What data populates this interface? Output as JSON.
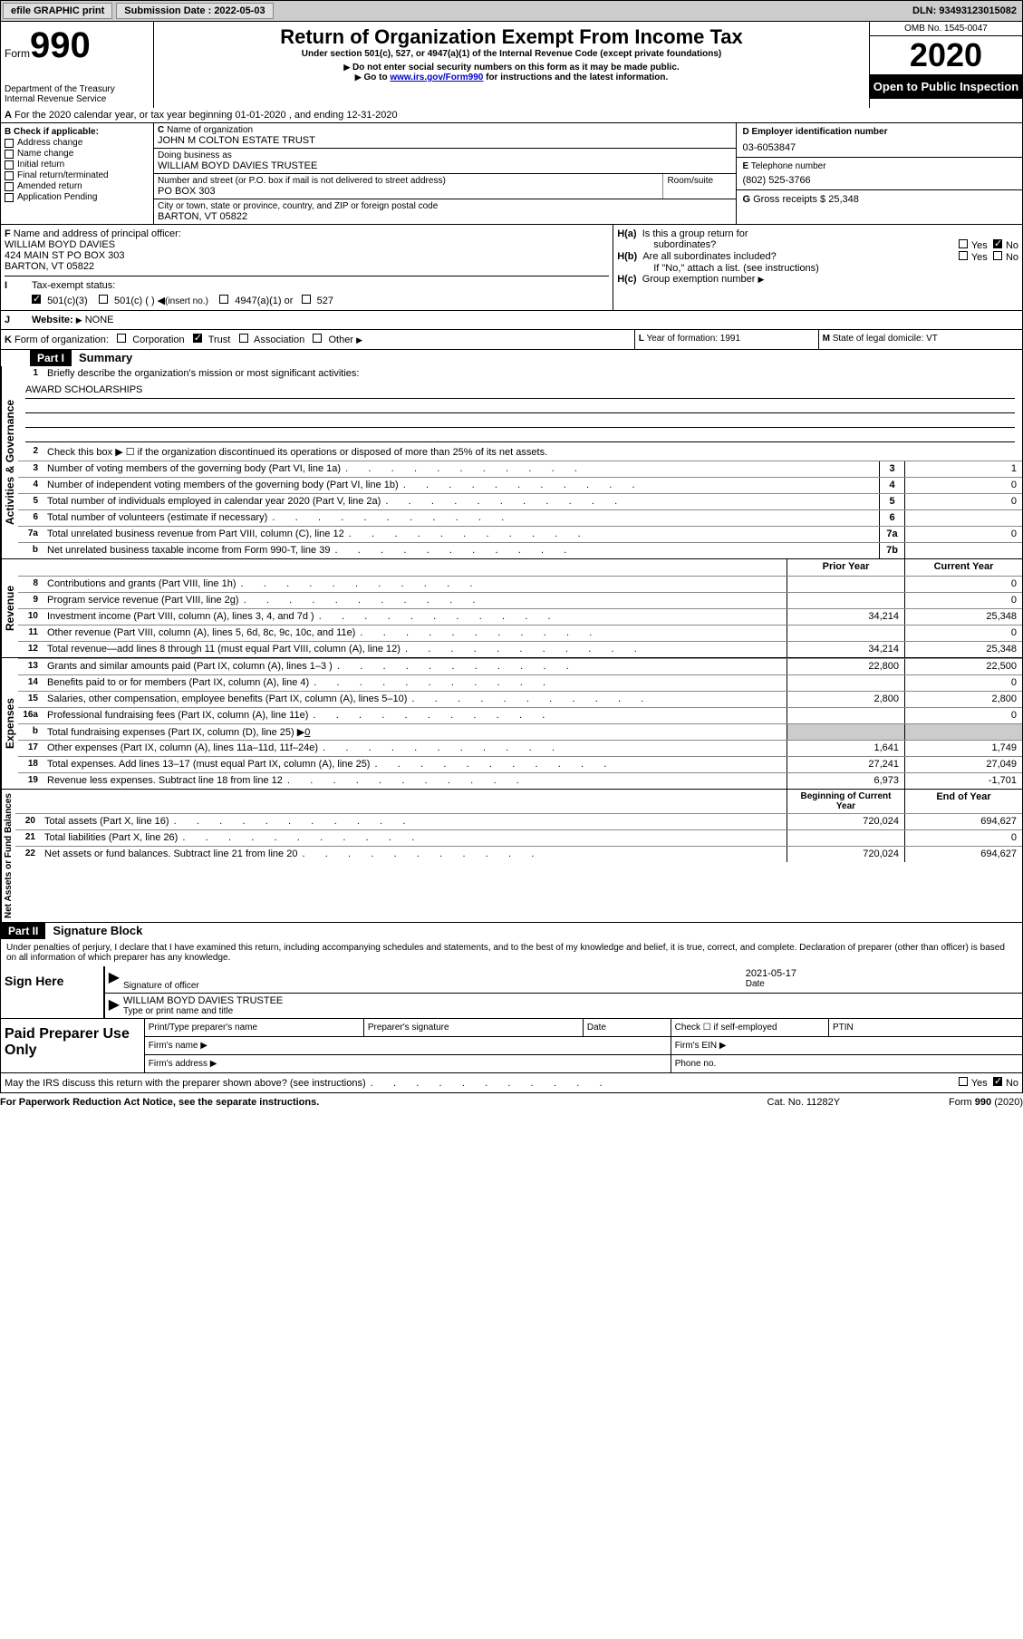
{
  "topbar": {
    "efile_label": "efile GRAPHIC print",
    "submission_label": "Submission Date : 2022-05-03",
    "dln_label": "DLN: 93493123015082"
  },
  "header": {
    "form_prefix": "Form",
    "form_number": "990",
    "title": "Return of Organization Exempt From Income Tax",
    "subtitle": "Under section 501(c), 527, or 4947(a)(1) of the Internal Revenue Code (except private foundations)",
    "note1": "Do not enter social security numbers on this form as it may be made public.",
    "note2_prefix": "Go to ",
    "note2_link": "www.irs.gov/Form990",
    "note2_suffix": " for instructions and the latest information.",
    "dept1": "Department of the Treasury",
    "dept2": "Internal Revenue Service",
    "omb": "OMB No. 1545-0047",
    "year": "2020",
    "inspect": "Open to Public Inspection"
  },
  "sectionA": {
    "line": "For the 2020 calendar year, or tax year beginning 01-01-2020    , and ending 12-31-2020",
    "prefix": "A"
  },
  "sectionB": {
    "label": "Check if applicable:",
    "prefix": "B",
    "items": [
      "Address change",
      "Name change",
      "Initial return",
      "Final return/terminated",
      "Amended return",
      "Application Pending"
    ]
  },
  "sectionC": {
    "name_label": "Name of organization",
    "prefix": "C",
    "name": "JOHN M COLTON ESTATE TRUST",
    "dba_label": "Doing business as",
    "dba": "WILLIAM BOYD DAVIES TRUSTEE",
    "street_label": "Number and street (or P.O. box if mail is not delivered to street address)",
    "street": "PO BOX 303",
    "room_label": "Room/suite",
    "city_label": "City or town, state or province, country, and ZIP or foreign postal code",
    "city": "BARTON, VT  05822"
  },
  "sectionD": {
    "label": "Employer identification number",
    "prefix": "D",
    "value": "03-6053847"
  },
  "sectionE": {
    "label": "Telephone number",
    "prefix": "E",
    "value": "(802) 525-3766"
  },
  "sectionG": {
    "label": "Gross receipts $ 25,348",
    "prefix": "G"
  },
  "sectionF": {
    "label": "Name and address of principal officer:",
    "prefix": "F",
    "name": "WILLIAM BOYD DAVIES",
    "addr1": "424 MAIN ST PO BOX 303",
    "addr2": "BARTON, VT  05822"
  },
  "sectionH": {
    "ha_label": "Is this a group return for",
    "ha_label2": "subordinates?",
    "ha_prefix": "H(a)",
    "hb_label": "Are all subordinates included?",
    "hb_prefix": "H(b)",
    "hb_note": "If \"No,\" attach a list. (see instructions)",
    "hc_label": "Group exemption number",
    "hc_prefix": "H(c)",
    "yes": "Yes",
    "no": "No"
  },
  "sectionI": {
    "label": "Tax-exempt status:",
    "prefix": "I",
    "opt1": "501(c)(3)",
    "opt2": "501(c) (   )",
    "opt2_note": "(insert no.)",
    "opt3": "4947(a)(1) or",
    "opt4": "527"
  },
  "sectionJ": {
    "label": "Website:",
    "prefix": "J",
    "value": "NONE"
  },
  "sectionK": {
    "label": "Form of organization:",
    "prefix": "K",
    "opts": [
      "Corporation",
      "Trust",
      "Association",
      "Other"
    ]
  },
  "sectionL": {
    "label": "Year of formation: 1991",
    "prefix": "L"
  },
  "sectionM": {
    "label": "State of legal domicile: VT",
    "prefix": "M"
  },
  "part1": {
    "label": "Part I",
    "title": "Summary",
    "vert1": "Activities & Governance",
    "vert2": "Revenue",
    "vert3": "Expenses",
    "vert4": "Net Assets or Fund Balances",
    "line1_label": "Briefly describe the organization's mission or most significant activities:",
    "line1_value": "AWARD SCHOLARSHIPS",
    "line2": "Check this box ▶ ☐  if the organization discontinued its operations or disposed of more than 25% of its net assets.",
    "lines_ag": [
      {
        "n": "3",
        "d": "Number of voting members of the governing body (Part VI, line 1a)",
        "box": "3",
        "v": "1"
      },
      {
        "n": "4",
        "d": "Number of independent voting members of the governing body (Part VI, line 1b)",
        "box": "4",
        "v": "0"
      },
      {
        "n": "5",
        "d": "Total number of individuals employed in calendar year 2020 (Part V, line 2a)",
        "box": "5",
        "v": "0"
      },
      {
        "n": "6",
        "d": "Total number of volunteers (estimate if necessary)",
        "box": "6",
        "v": ""
      },
      {
        "n": "7a",
        "d": "Total unrelated business revenue from Part VIII, column (C), line 12",
        "box": "7a",
        "v": "0"
      },
      {
        "n": "b",
        "d": "Net unrelated business taxable income from Form 990-T, line 39",
        "box": "7b",
        "v": ""
      }
    ],
    "hdr_prior": "Prior Year",
    "hdr_current": "Current Year",
    "lines_rev": [
      {
        "n": "8",
        "d": "Contributions and grants (Part VIII, line 1h)",
        "p": "",
        "c": "0"
      },
      {
        "n": "9",
        "d": "Program service revenue (Part VIII, line 2g)",
        "p": "",
        "c": "0"
      },
      {
        "n": "10",
        "d": "Investment income (Part VIII, column (A), lines 3, 4, and 7d )",
        "p": "34,214",
        "c": "25,348"
      },
      {
        "n": "11",
        "d": "Other revenue (Part VIII, column (A), lines 5, 6d, 8c, 9c, 10c, and 11e)",
        "p": "",
        "c": "0"
      },
      {
        "n": "12",
        "d": "Total revenue—add lines 8 through 11 (must equal Part VIII, column (A), line 12)",
        "p": "34,214",
        "c": "25,348"
      }
    ],
    "lines_exp": [
      {
        "n": "13",
        "d": "Grants and similar amounts paid (Part IX, column (A), lines 1–3 )",
        "p": "22,800",
        "c": "22,500"
      },
      {
        "n": "14",
        "d": "Benefits paid to or for members (Part IX, column (A), line 4)",
        "p": "",
        "c": "0"
      },
      {
        "n": "15",
        "d": "Salaries, other compensation, employee benefits (Part IX, column (A), lines 5–10)",
        "p": "2,800",
        "c": "2,800"
      },
      {
        "n": "16a",
        "d": "Professional fundraising fees (Part IX, column (A), line 11e)",
        "p": "",
        "c": "0"
      }
    ],
    "line16b": "Total fundraising expenses (Part IX, column (D), line 25) ▶",
    "line16b_val": "0",
    "lines_exp2": [
      {
        "n": "17",
        "d": "Other expenses (Part IX, column (A), lines 11a–11d, 11f–24e)",
        "p": "1,641",
        "c": "1,749"
      },
      {
        "n": "18",
        "d": "Total expenses. Add lines 13–17 (must equal Part IX, column (A), line 25)",
        "p": "27,241",
        "c": "27,049"
      },
      {
        "n": "19",
        "d": "Revenue less expenses. Subtract line 18 from line 12",
        "p": "6,973",
        "c": "-1,701"
      }
    ],
    "hdr_begin": "Beginning of Current Year",
    "hdr_end": "End of Year",
    "lines_net": [
      {
        "n": "20",
        "d": "Total assets (Part X, line 16)",
        "p": "720,024",
        "c": "694,627"
      },
      {
        "n": "21",
        "d": "Total liabilities (Part X, line 26)",
        "p": "",
        "c": "0"
      },
      {
        "n": "22",
        "d": "Net assets or fund balances. Subtract line 21 from line 20",
        "p": "720,024",
        "c": "694,627"
      }
    ]
  },
  "part2": {
    "label": "Part II",
    "title": "Signature Block",
    "declaration": "Under penalties of perjury, I declare that I have examined this return, including accompanying schedules and statements, and to the best of my knowledge and belief, it is true, correct, and complete. Declaration of preparer (other than officer) is based on all information of which preparer has any knowledge.",
    "sign_here": "Sign Here",
    "sig_officer": "Signature of officer",
    "date": "Date",
    "date_value": "2021-05-17",
    "name_title": "WILLIAM BOYD DAVIES  TRUSTEE",
    "name_title_label": "Type or print name and title",
    "paid_label": "Paid Preparer Use Only",
    "prep_name": "Print/Type preparer's name",
    "prep_sig": "Preparer's signature",
    "prep_date": "Date",
    "prep_check": "Check ☐ if self-employed",
    "ptin": "PTIN",
    "firm_name": "Firm's name   ▶",
    "firm_ein": "Firm's EIN ▶",
    "firm_addr": "Firm's address ▶",
    "phone": "Phone no.",
    "discuss": "May the IRS discuss this return with the preparer shown above? (see instructions)"
  },
  "footer": {
    "paperwork": "For Paperwork Reduction Act Notice, see the separate instructions.",
    "catno": "Cat. No. 11282Y",
    "formref": "Form 990 (2020)"
  }
}
